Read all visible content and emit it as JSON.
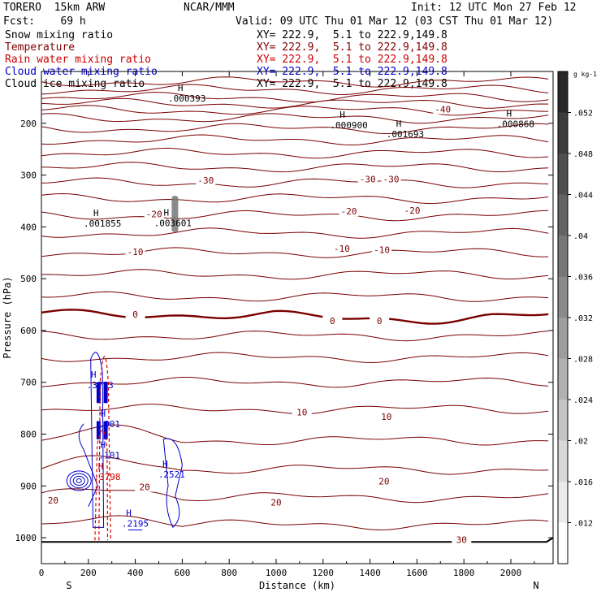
{
  "header": {
    "model": "TORERO  15km ARW",
    "org": "NCAR/MMM",
    "init": "Init: 12 UTC Mon 27 Feb 12",
    "fcst": "Fcst:    69 h",
    "valid": "Valid: 09 UTC Thu 01 Mar 12 (03 CST Thu 01 Mar 12)",
    "fields": [
      {
        "name": "Snow mixing ratio",
        "xy": "XY= 222.9,  5.1 to 222.9,149.8",
        "color": "#000000"
      },
      {
        "name": "Temperature",
        "xy": "XY= 222.9,  5.1 to 222.9,149.8",
        "color": "#800000"
      },
      {
        "name": "Rain water mixing ratio",
        "xy": "XY= 222.9,  5.1 to 222.9,149.8",
        "color": "#cc0000"
      },
      {
        "name": "Cloud water mixing ratio",
        "xy": "XY= 222.9,  5.1 to 222.9,149.8",
        "color": "#0000cc"
      },
      {
        "name": "Cloud ice mixing ratio",
        "xy": "XY= 222.9,  5.1 to 222.9,149.8",
        "color": "#000000"
      }
    ]
  },
  "chart_data": {
    "type": "cross-section",
    "xlabel": "Distance (km)",
    "ylabel": "Pressure (hPa)",
    "xlim": [
      0,
      2180
    ],
    "ylim": [
      1050,
      100
    ],
    "x_ticks": [
      0,
      200,
      400,
      600,
      800,
      1000,
      1200,
      1400,
      1600,
      1800,
      2000
    ],
    "y_ticks": [
      200,
      300,
      400,
      500,
      600,
      700,
      800,
      900,
      1000
    ],
    "end_labels": {
      "left": "S",
      "right": "N"
    },
    "colorbar": {
      "unit": "g kg-1",
      "ticks": [
        ".052",
        ".048",
        ".044",
        ".04",
        ".036",
        ".032",
        ".028",
        ".024",
        ".02",
        ".016",
        ".012"
      ]
    },
    "temperature_contour_labels": [
      {
        "text": "-40",
        "x": 1710,
        "p": 173
      },
      {
        "text": "-30",
        "x": 700,
        "p": 310
      },
      {
        "text": "-30",
        "x": 1390,
        "p": 308
      },
      {
        "text": "-30",
        "x": 1490,
        "p": 308
      },
      {
        "text": "-20",
        "x": 480,
        "p": 375
      },
      {
        "text": "-20",
        "x": 1310,
        "p": 370
      },
      {
        "text": "-20",
        "x": 1580,
        "p": 368
      },
      {
        "text": "-10",
        "x": 400,
        "p": 448
      },
      {
        "text": "-10",
        "x": 1280,
        "p": 442
      },
      {
        "text": "-10",
        "x": 1450,
        "p": 444
      },
      {
        "text": "0",
        "x": 400,
        "p": 569
      },
      {
        "text": "0",
        "x": 1240,
        "p": 581
      },
      {
        "text": "0",
        "x": 1440,
        "p": 581
      },
      {
        "text": "10",
        "x": 1110,
        "p": 758
      },
      {
        "text": "10",
        "x": 1470,
        "p": 766
      },
      {
        "text": "20",
        "x": 440,
        "p": 902
      },
      {
        "text": "20",
        "x": 1000,
        "p": 932
      },
      {
        "text": "20",
        "x": 1460,
        "p": 891
      },
      {
        "text": "20",
        "x": 50,
        "p": 928
      },
      {
        "text": "30",
        "x": 1790,
        "p": 1004
      }
    ],
    "maxima": [
      {
        "text": ".000393",
        "x": 620,
        "p": 153,
        "color": "#000000"
      },
      {
        "text": ".000900",
        "x": 1310,
        "p": 205,
        "color": "#000000"
      },
      {
        "text": ".001693",
        "x": 1550,
        "p": 222,
        "color": "#000000"
      },
      {
        "text": ".000868",
        "x": 2020,
        "p": 203,
        "color": "#000000"
      },
      {
        "text": ".001855",
        "x": 260,
        "p": 395,
        "color": "#000000"
      },
      {
        "text": ".003601",
        "x": 560,
        "p": 394,
        "color": "#000000"
      },
      {
        "text": ".3773",
        "x": 250,
        "p": 707,
        "color": "#0000cc"
      },
      {
        "text": ".001",
        "x": 290,
        "p": 782,
        "color": "#0000cc"
      },
      {
        "text": ".101",
        "x": 290,
        "p": 842,
        "color": "#0000cc"
      },
      {
        "text": ".2521",
        "x": 555,
        "p": 879,
        "color": "#0000cc"
      },
      {
        "text": ".2195",
        "x": 400,
        "p": 974,
        "color": "#0000cc"
      },
      {
        "text": ".3798",
        "x": 280,
        "p": 884,
        "color": "#cc0000"
      }
    ]
  }
}
